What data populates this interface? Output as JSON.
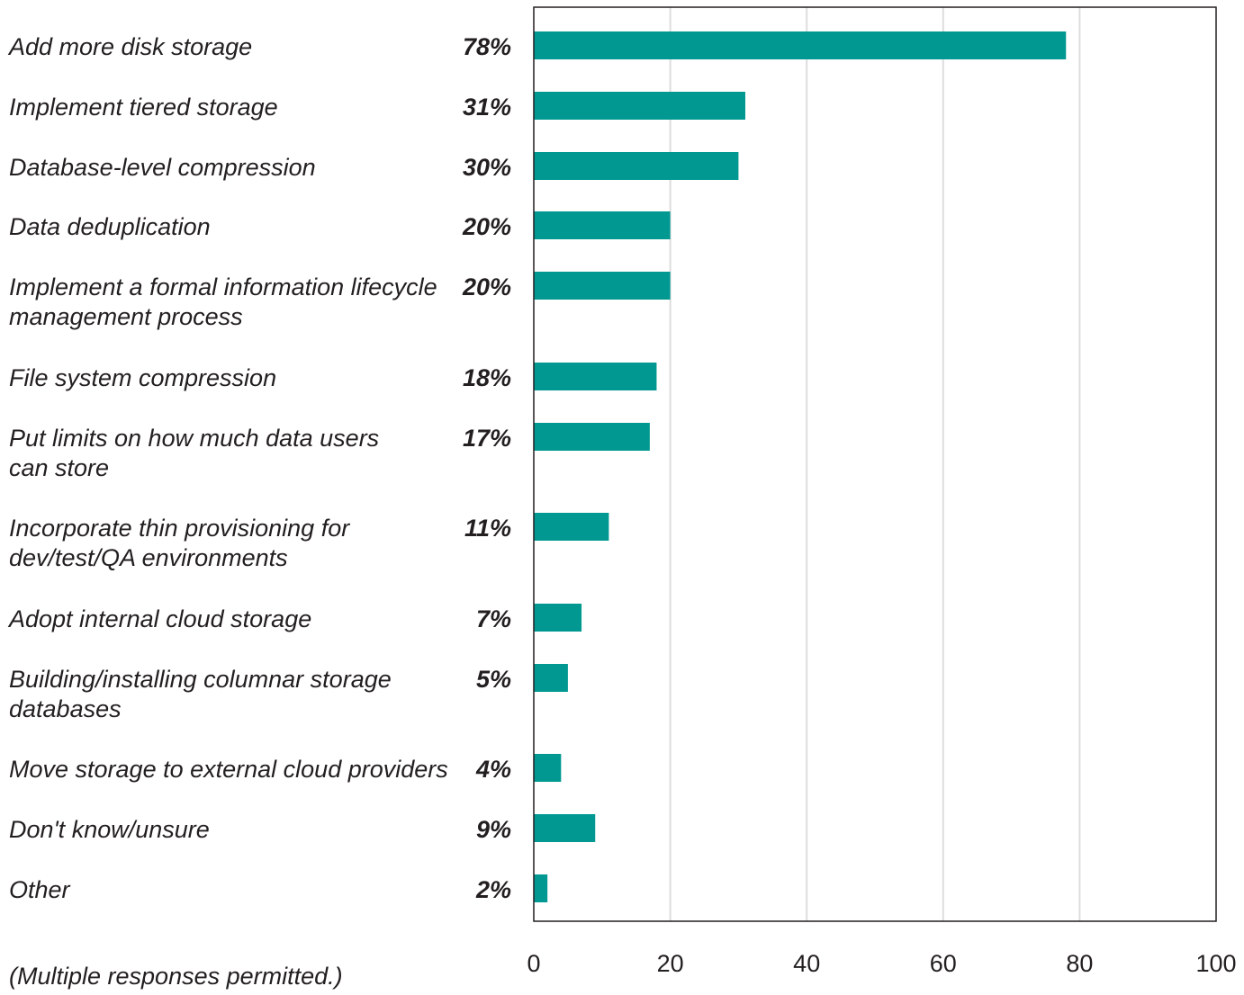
{
  "chart_data": {
    "type": "bar",
    "orientation": "horizontal",
    "categories": [
      [
        "Add more disk storage"
      ],
      [
        "Implement tiered storage"
      ],
      [
        "Database-level compression"
      ],
      [
        "Data deduplication"
      ],
      [
        "Implement a formal information lifecycle",
        "management process"
      ],
      [
        "File system compression"
      ],
      [
        "Put limits on how much data users",
        "can store"
      ],
      [
        "Incorporate thin provisioning for",
        "dev/test/QA environments"
      ],
      [
        "Adopt internal cloud storage"
      ],
      [
        "Building/installing columnar storage",
        "databases"
      ],
      [
        "Move storage to external cloud providers"
      ],
      [
        "Don't know/unsure"
      ],
      [
        "Other"
      ]
    ],
    "values": [
      78,
      31,
      30,
      20,
      20,
      18,
      17,
      11,
      7,
      5,
      4,
      9,
      2
    ],
    "value_labels": [
      "78%",
      "31%",
      "30%",
      "20%",
      "20%",
      "18%",
      "17%",
      "11%",
      "7%",
      "5%",
      "4%",
      "9%",
      "2%"
    ],
    "xlim": [
      0,
      100
    ],
    "xticks": [
      0,
      20,
      40,
      60,
      80,
      100
    ],
    "xtick_labels": [
      "0",
      "20",
      "40",
      "60",
      "80",
      "100"
    ],
    "grid": true,
    "bar_color": "#009891",
    "grid_color": "#dddddd",
    "axis_color": "#231f20",
    "footnote": "(Multiple responses permitted.)",
    "title": "",
    "xlabel": "",
    "ylabel": ""
  }
}
